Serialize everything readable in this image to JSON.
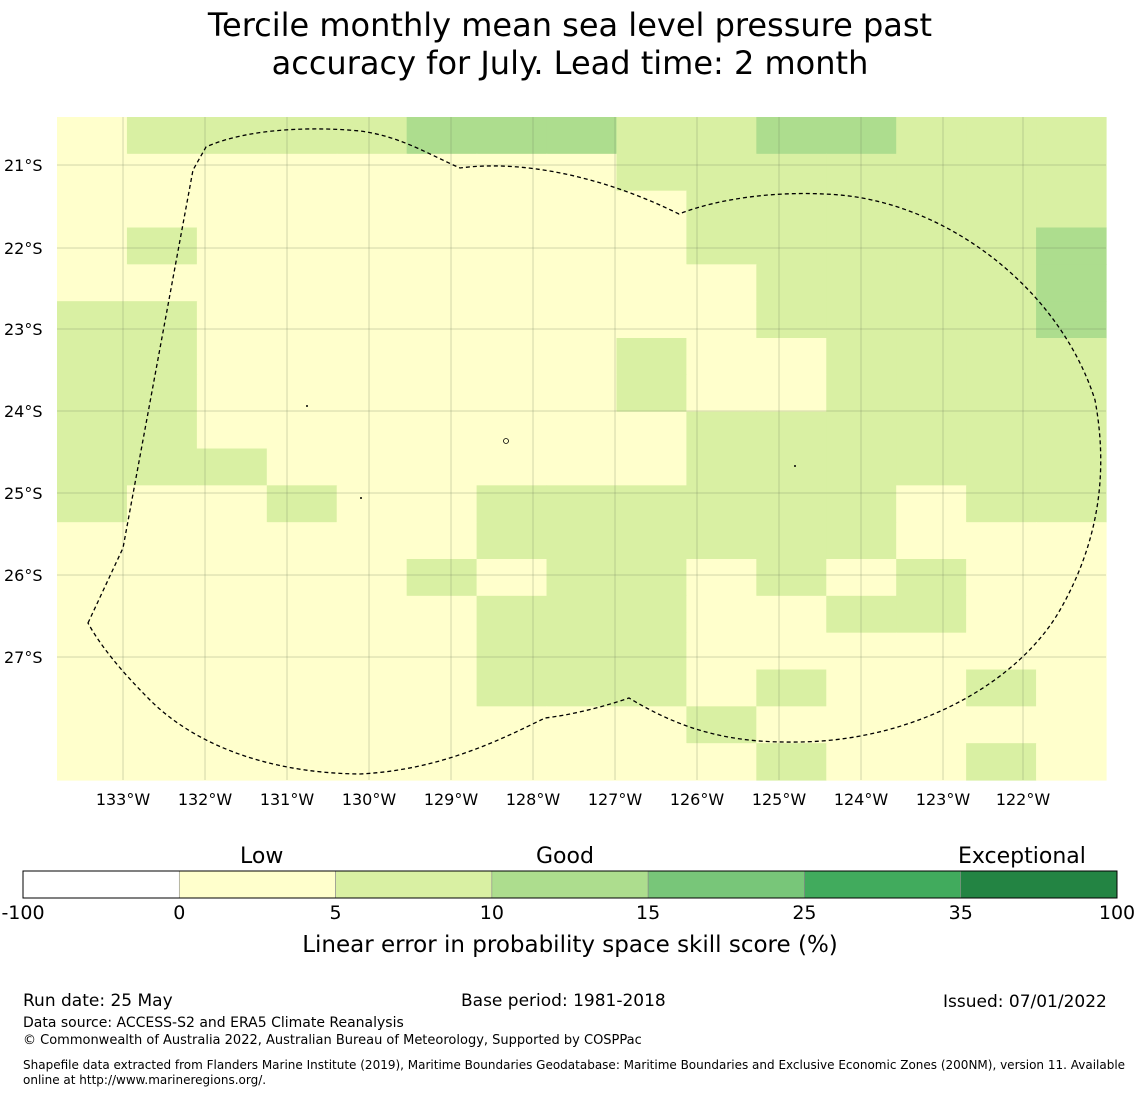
{
  "title": {
    "line1": "Tercile monthly mean sea level pressure past",
    "line2": "accuracy for July. Lead time: 2 month"
  },
  "map": {
    "lat_labels": [
      "21°S",
      "22°S",
      "23°S",
      "24°S",
      "25°S",
      "26°S",
      "27°S"
    ],
    "lon_labels": [
      "133°W",
      "132°W",
      "131°W",
      "130°W",
      "129°W",
      "128°W",
      "127°W",
      "126°W",
      "125°W",
      "124°W",
      "123°W",
      "122°W"
    ],
    "category_colors": {
      "0": "#ffffcc",
      "1": "#d9f0a3",
      "2": "#addd8e"
    },
    "grid_rows": [
      "011112221122111",
      "000000001111111",
      "000000000111111",
      "010000000111112",
      "000000000011112",
      "110000000011112",
      "110000001001111",
      "110000001001111",
      "110000000111111",
      "111000000111111",
      "100100111111011",
      "000000111111000",
      "000001011010100",
      "000000111001100",
      "000000111000000",
      "000000111010010",
      "000000000100000",
      "000000000010010"
    ]
  },
  "colorbar": {
    "labels": {
      "low": "Low",
      "good": "Good",
      "exceptional": "Exceptional"
    },
    "ticks": [
      "-100",
      "0",
      "5",
      "10",
      "15",
      "25",
      "35",
      "100"
    ],
    "colors": [
      "#ffffff",
      "#ffffcc",
      "#d9f0a3",
      "#addd8e",
      "#78c679",
      "#41ab5d",
      "#238443"
    ],
    "title": "Linear error in probability space skill score (%)"
  },
  "footer": {
    "run_date": "Run date: 25 May",
    "base_period": "Base period: 1981-2018",
    "issued": "Issued: 07/01/2022",
    "data_source": "Data source: ACCESS-S2 and ERA5 Climate Reanalysis",
    "copyright": "© Commonwealth of Australia 2022, Australian Bureau of Meteorology, Supported by COSPPac",
    "shapefile_line1": "Shapefile data extracted from Flanders Marine Institute (2019), Maritime Boundaries Geodatabase: Maritime Boundaries and Exclusive Economic Zones (200NM), version 11. Available",
    "shapefile_line2": "online at http://www.marineregions.org/."
  }
}
